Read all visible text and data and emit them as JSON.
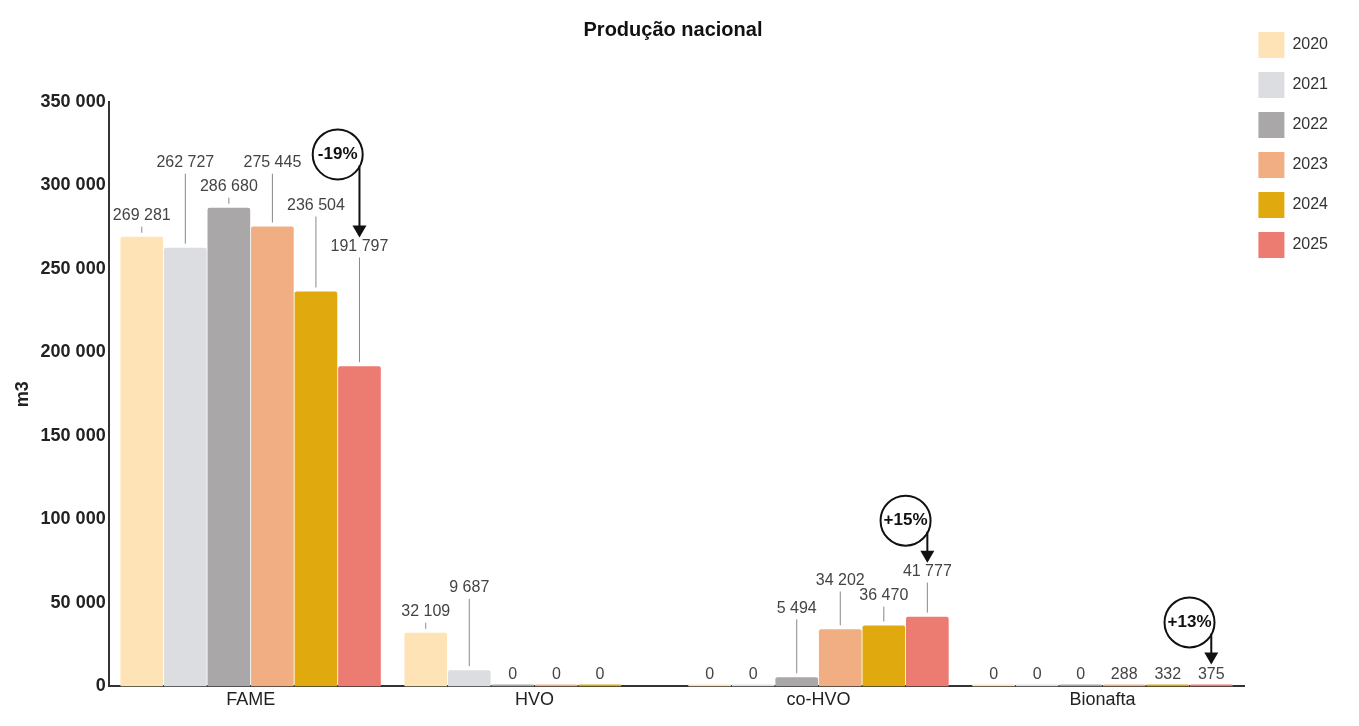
{
  "chart_data": {
    "type": "bar",
    "title": "Produção nacional",
    "ylabel": "m3",
    "categories": [
      "FAME",
      "HVO",
      "co-HVO",
      "Bionafta"
    ],
    "series": [
      {
        "name": "2020",
        "color": "#fde3b5",
        "values": [
          269281,
          32109,
          0,
          0
        ],
        "value_labels": [
          "269 281",
          "32 109",
          "0",
          "0"
        ]
      },
      {
        "name": "2021",
        "color": "#dcdde1",
        "values": [
          262727,
          9687,
          0,
          0
        ],
        "value_labels": [
          "262 727",
          "9 687",
          "0",
          "0"
        ]
      },
      {
        "name": "2022",
        "color": "#a9a7a8",
        "values": [
          286680,
          0,
          5494,
          0
        ],
        "value_labels": [
          "286 680",
          "0",
          "5 494",
          "0"
        ]
      },
      {
        "name": "2023",
        "color": "#f2ae83",
        "values": [
          275445,
          0,
          34202,
          288
        ],
        "value_labels": [
          "275 445",
          "0",
          "34 202",
          "288"
        ]
      },
      {
        "name": "2024",
        "color": "#e0a90d",
        "values": [
          236504,
          0,
          36470,
          332
        ],
        "value_labels": [
          "236 504",
          "0",
          "36 470",
          "332"
        ]
      },
      {
        "name": "2025",
        "color": "#ec7b72",
        "values": [
          191797,
          null,
          41777,
          375
        ],
        "value_labels": [
          "191 797",
          null,
          "41 777",
          "375"
        ]
      }
    ],
    "ylim": [
      0,
      350000
    ],
    "yticks": [
      {
        "value": 0,
        "label": "0"
      },
      {
        "value": 50000,
        "label": "50 000"
      },
      {
        "value": 100000,
        "label": "100 000"
      },
      {
        "value": 150000,
        "label": "150 000"
      },
      {
        "value": 200000,
        "label": "200 000"
      },
      {
        "value": 250000,
        "label": "250 000"
      },
      {
        "value": 300000,
        "label": "300 000"
      },
      {
        "value": 350000,
        "label": "350 000"
      }
    ],
    "grid": false,
    "legend": "top right",
    "annotations": [
      "-19%",
      "+15%",
      "+13%"
    ]
  }
}
